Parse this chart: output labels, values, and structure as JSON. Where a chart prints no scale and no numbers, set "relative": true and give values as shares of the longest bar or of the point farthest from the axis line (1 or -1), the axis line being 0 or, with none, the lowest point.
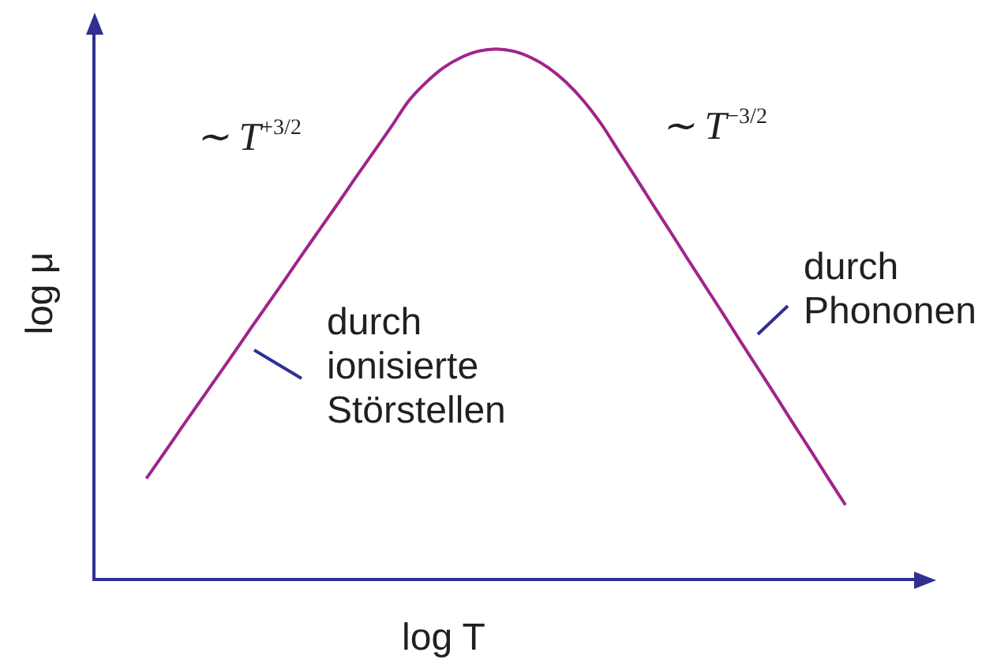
{
  "chart_data": {
    "type": "line",
    "relative": true,
    "xlabel": "log T",
    "ylabel": "log μ",
    "color": "#a0248c",
    "annotations": [
      "∼ T$^{+3/2}$",
      "∼ T$^{−3/2}$",
      "durch\nionisierte\nStörstellen",
      "durch\nPhononen"
    ],
    "categories": [
      null,
      null,
      null,
      null,
      null,
      null,
      null,
      null,
      null,
      null,
      null,
      null,
      null,
      null,
      null,
      null,
      null,
      null,
      null,
      null,
      null,
      null,
      null,
      null,
      null,
      null,
      null,
      null,
      null,
      null,
      null,
      null,
      null,
      null,
      null,
      null,
      null,
      null,
      null,
      null,
      null,
      null,
      null,
      null,
      null,
      null,
      null,
      null
    ],
    "values": [
      null,
      null,
      null,
      0.191,
      0.238,
      0.286,
      0.333,
      0.38,
      0.427,
      0.475,
      0.522,
      0.569,
      0.617,
      0.664,
      0.711,
      0.759,
      0.806,
      0.853,
      0.902,
      0.937,
      0.965,
      0.984,
      0.996,
      1,
      0.996,
      0.984,
      0.965,
      0.938,
      0.903,
      0.86,
      0.809,
      0.758,
      0.706,
      0.655,
      0.603,
      0.552,
      0.501,
      0.449,
      0.398,
      0.347,
      0.295,
      0.244,
      0.192,
      0.141,
      null,
      null,
      null,
      null
    ]
  }
}
